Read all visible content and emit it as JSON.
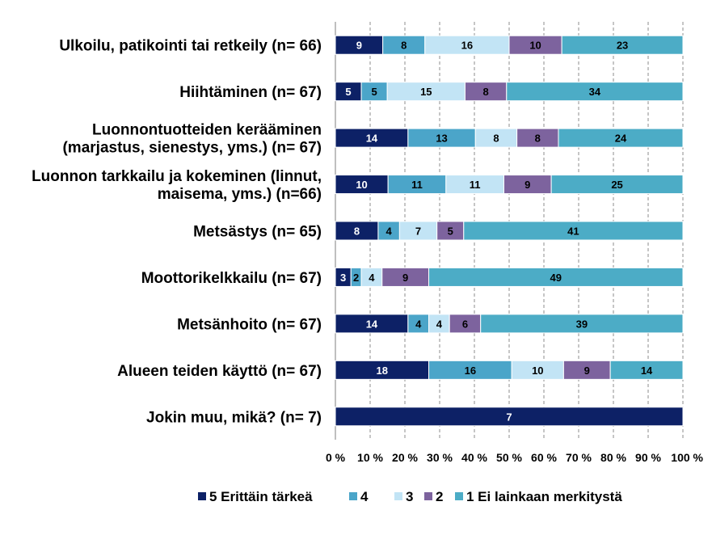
{
  "chart_data": {
    "type": "bar",
    "orientation": "horizontal",
    "stacked": "percent",
    "title": "",
    "xlabel": "",
    "ylabel": "",
    "xlim": [
      0,
      100
    ],
    "grid": true,
    "legend_position": "bottom",
    "categories": [
      [
        "Ulkoilu, patikointi tai retkeily (n= 66)"
      ],
      [
        "Hiihtäminen (n= 67)"
      ],
      [
        "Luonnontuotteiden kerääminen",
        "(marjastus, sienestys, yms.) (n= 67)"
      ],
      [
        "Luonnon tarkkailu ja kokeminen (linnut,",
        "maisema, yms.) (n=66)"
      ],
      [
        "Metsästys (n= 65)"
      ],
      [
        "Moottorikelkkailu (n= 67)"
      ],
      [
        "Metsänhoito (n= 67)"
      ],
      [
        "Alueen teiden käyttö (n= 67)"
      ],
      [
        "Jokin muu, mikä? (n= 7)"
      ]
    ],
    "ticks": [
      "0 %",
      "10 %",
      "20 %",
      "30 %",
      "40 %",
      "50 %",
      "60 %",
      "70 %",
      "80 %",
      "90 %",
      "100 %"
    ],
    "series": [
      {
        "name": "5 Erittäin tärkeä",
        "color": "#0d2166",
        "text_color": "#ffffff",
        "values": [
          9,
          5,
          14,
          10,
          8,
          3,
          14,
          18,
          7
        ]
      },
      {
        "name": "4",
        "color": "#4ba5c9",
        "text_color": "#000000",
        "values": [
          8,
          5,
          13,
          11,
          4,
          2,
          4,
          16,
          0
        ]
      },
      {
        "name": "3",
        "color": "#c2e4f5",
        "text_color": "#000000",
        "values": [
          16,
          15,
          8,
          11,
          7,
          4,
          4,
          10,
          0
        ]
      },
      {
        "name": "2",
        "color": "#7d639e",
        "text_color": "#000000",
        "values": [
          10,
          8,
          8,
          9,
          5,
          9,
          6,
          9,
          0
        ]
      },
      {
        "name": "1 Ei lainkaan merkitystä",
        "color": "#4cacc6",
        "text_color": "#000000",
        "values": [
          23,
          34,
          24,
          25,
          41,
          49,
          39,
          14,
          0
        ]
      }
    ]
  }
}
